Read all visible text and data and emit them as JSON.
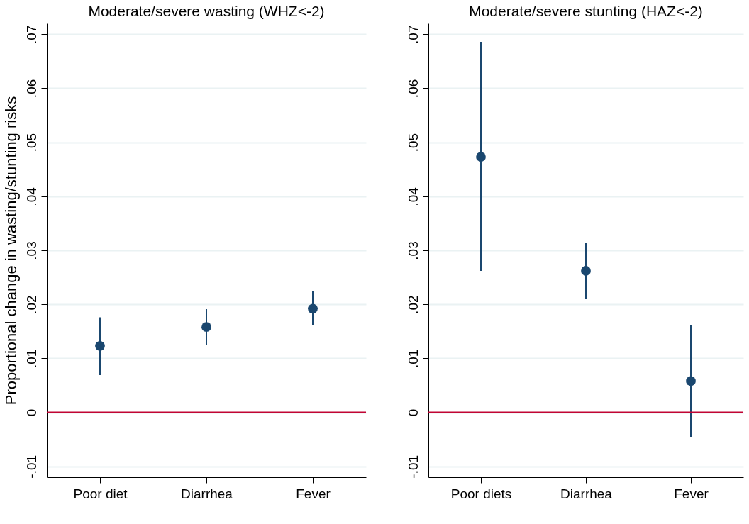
{
  "chart_data": [
    {
      "type": "scatter",
      "title": "Moderate/severe wasting (WHZ<-2)",
      "ylabel": "Proportional change in wasting/stunting risks",
      "categories": [
        "Poor diet",
        "Diarrhea",
        "Fever"
      ],
      "series": [
        {
          "color": "#1a476f",
          "values": [
            0.0123,
            0.0158,
            0.0192
          ],
          "errors": [
            [
              0.0069,
              0.0176
            ],
            [
              0.0125,
              0.0191
            ],
            [
              0.0161,
              0.0224
            ]
          ]
        }
      ],
      "ylim": [
        -0.012,
        0.072
      ],
      "yticks": [
        {
          "value": -0.01,
          "label": "-.01"
        },
        0,
        {
          "value": 0.01,
          "label": ".01"
        },
        {
          "value": 0.02,
          "label": ".02"
        },
        {
          "value": 0.03,
          "label": ".03"
        },
        {
          "value": 0.04,
          "label": ".04"
        },
        {
          "value": 0.05,
          "label": ".05"
        },
        {
          "value": 0.06,
          "label": ".06"
        },
        {
          "value": 0.07,
          "label": ".07"
        }
      ],
      "grid": "y",
      "marker": "circle",
      "ref_lines": [
        {
          "axis": "y",
          "value": 0,
          "color": "#c10534"
        }
      ]
    },
    {
      "type": "scatter",
      "title": "Moderate/severe stunting (HAZ<-2)",
      "categories": [
        "Poor diets",
        "Diarrhea",
        "Fever"
      ],
      "series": [
        {
          "color": "#1a476f",
          "values": [
            0.0473,
            0.0262,
            0.0058
          ],
          "errors": [
            [
              0.0262,
              0.0686
            ],
            [
              0.021,
              0.0313
            ],
            [
              -0.0046,
              0.0161
            ]
          ]
        }
      ],
      "ylim": [
        -0.012,
        0.072
      ],
      "yticks": [
        {
          "value": -0.01,
          "label": "-.01"
        },
        0,
        {
          "value": 0.01,
          "label": ".01"
        },
        {
          "value": 0.02,
          "label": ".02"
        },
        {
          "value": 0.03,
          "label": ".03"
        },
        {
          "value": 0.04,
          "label": ".04"
        },
        {
          "value": 0.05,
          "label": ".05"
        },
        {
          "value": 0.06,
          "label": ".06"
        },
        {
          "value": 0.07,
          "label": ".07"
        }
      ],
      "grid": "y",
      "marker": "circle",
      "ref_lines": [
        {
          "axis": "y",
          "value": 0,
          "color": "#c10534"
        }
      ]
    }
  ]
}
